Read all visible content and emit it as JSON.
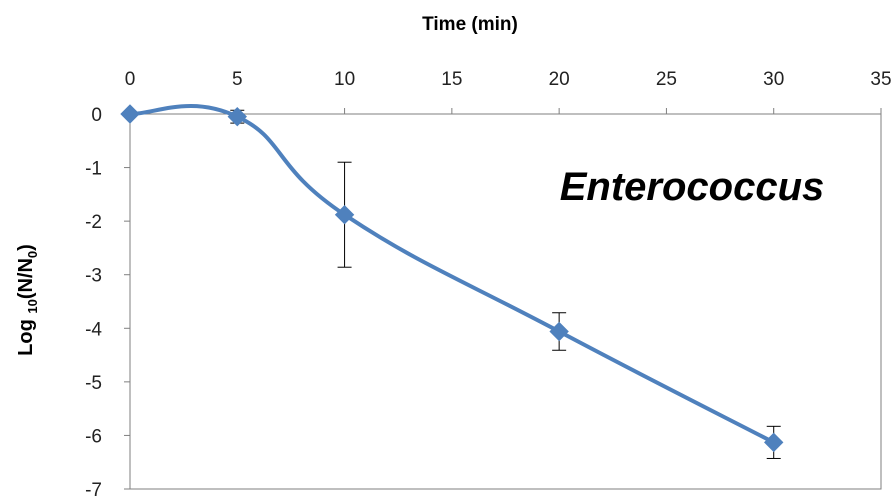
{
  "chart_data": {
    "type": "line",
    "xlabel": "Time (min)",
    "ylabel": {
      "prefix": "Log ",
      "base": "10",
      "open": "(N/N",
      "sub": "0",
      "close": ")"
    },
    "xlim": [
      0,
      35
    ],
    "ylim": [
      -7,
      0
    ],
    "x_ticks": [
      "0",
      "5",
      "10",
      "15",
      "20",
      "25",
      "30",
      "35"
    ],
    "y_ticks": [
      "0",
      "-1",
      "-2",
      "-3",
      "-4",
      "-5",
      "-6",
      "-7"
    ],
    "x_axis_position": "top",
    "grid": false,
    "smoothed": true,
    "annotation": "Enterococcus",
    "series": [
      {
        "x": [
          0,
          5,
          10,
          20,
          30
        ],
        "y": [
          0,
          -0.05,
          -1.88,
          -4.06,
          -6.13
        ],
        "error": [
          0,
          0.12,
          0.98,
          0.35,
          0.3
        ],
        "marker": "diamond",
        "color": "#4F81BD"
      }
    ]
  },
  "colors": {
    "series": "#4F81BD",
    "axis": "#7f7f7f",
    "error_bar": "#000000"
  }
}
